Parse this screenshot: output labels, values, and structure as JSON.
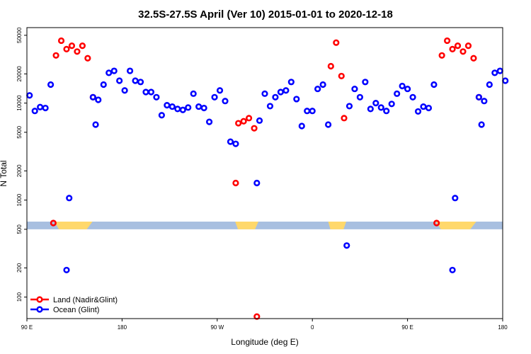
{
  "chart_data": {
    "type": "scatter",
    "title": "32.5S-27.5S April (Ver 10)   2015-01-01 to 2020-12-18",
    "xlabel": "Longitude (deg E)",
    "ylabel": "N Total",
    "x_scale": "linear",
    "y_scale": "log",
    "xlim": [
      90,
      540
    ],
    "ylim": [
      60,
      60000
    ],
    "x_ticks": [
      {
        "value": 90,
        "label": "90 E"
      },
      {
        "value": 180,
        "label": "180"
      },
      {
        "value": 270,
        "label": "90 W"
      },
      {
        "value": 360,
        "label": "0"
      },
      {
        "value": 450,
        "label": "90 E"
      },
      {
        "value": 540,
        "label": "180"
      }
    ],
    "y_ticks": [
      {
        "value": 100,
        "label": "100"
      },
      {
        "value": 200,
        "label": "200"
      },
      {
        "value": 500,
        "label": "500"
      },
      {
        "value": 1000,
        "label": "1000"
      },
      {
        "value": 2000,
        "label": "2000"
      },
      {
        "value": 5000,
        "label": "5000"
      },
      {
        "value": 10000,
        "label": "10000"
      },
      {
        "value": 20000,
        "label": "20000"
      },
      {
        "value": 50000,
        "label": "50000"
      }
    ],
    "map_strip": {
      "y_range": [
        500,
        600
      ],
      "ocean_color": "#a8bfe0",
      "land_color": "#ffd86b",
      "land_segments": [
        [
          116,
          152
        ],
        [
          287,
          309
        ],
        [
          375,
          392
        ],
        [
          477,
          515
        ]
      ]
    },
    "series": [
      {
        "name": "Land (Nadir&Glint)",
        "color": "#ff0000",
        "points": [
          [
            115,
            580
          ],
          [
            117.5,
            31000
          ],
          [
            122.5,
            44000
          ],
          [
            127.5,
            36000
          ],
          [
            132.5,
            39000
          ],
          [
            137.5,
            34000
          ],
          [
            142.5,
            39000
          ],
          [
            147.5,
            29000
          ],
          [
            152.5,
            11500
          ],
          [
            287.5,
            1500
          ],
          [
            290,
            6200
          ],
          [
            295,
            6500
          ],
          [
            300,
            7000
          ],
          [
            305,
            5500
          ],
          [
            307.5,
            63
          ],
          [
            377.5,
            24000
          ],
          [
            382.5,
            42000
          ],
          [
            387.5,
            19000
          ],
          [
            390,
            7000
          ],
          [
            477.5,
            580
          ],
          [
            482.5,
            31000
          ],
          [
            487.5,
            44000
          ],
          [
            492.5,
            36000
          ],
          [
            497.5,
            39000
          ],
          [
            502.5,
            34000
          ],
          [
            507.5,
            39000
          ],
          [
            512.5,
            29000
          ],
          [
            517.5,
            11500
          ]
        ]
      },
      {
        "name": "Ocean (Glint)",
        "color": "#0000ff",
        "points": [
          [
            92.5,
            12000
          ],
          [
            97.5,
            8300
          ],
          [
            102.5,
            9100
          ],
          [
            107.5,
            8900
          ],
          [
            112.5,
            15500
          ],
          [
            127.5,
            190
          ],
          [
            130,
            1050
          ],
          [
            152.5,
            11500
          ],
          [
            155,
            6000
          ],
          [
            157.5,
            10800
          ],
          [
            162.5,
            15500
          ],
          [
            167.5,
            20500
          ],
          [
            172.5,
            21500
          ],
          [
            177.5,
            17000
          ],
          [
            182.5,
            13500
          ],
          [
            187.5,
            21500
          ],
          [
            192.5,
            17000
          ],
          [
            197.5,
            16500
          ],
          [
            202.5,
            13000
          ],
          [
            207.5,
            13000
          ],
          [
            212.5,
            11500
          ],
          [
            217.5,
            7500
          ],
          [
            222.5,
            9500
          ],
          [
            227.5,
            9200
          ],
          [
            232.5,
            8700
          ],
          [
            237.5,
            8500
          ],
          [
            242.5,
            9000
          ],
          [
            247.5,
            12500
          ],
          [
            252.5,
            9200
          ],
          [
            257.5,
            8900
          ],
          [
            262.5,
            6400
          ],
          [
            267.5,
            11500
          ],
          [
            272.5,
            13500
          ],
          [
            277.5,
            10500
          ],
          [
            282.5,
            4000
          ],
          [
            287.5,
            3800
          ],
          [
            307.5,
            1500
          ],
          [
            310,
            6600
          ],
          [
            315,
            12500
          ],
          [
            320,
            9300
          ],
          [
            325,
            11500
          ],
          [
            330,
            13000
          ],
          [
            335,
            13500
          ],
          [
            340,
            16500
          ],
          [
            345,
            11000
          ],
          [
            350,
            5800
          ],
          [
            355,
            8300
          ],
          [
            360,
            8300
          ],
          [
            365,
            14000
          ],
          [
            370,
            15500
          ],
          [
            375,
            6000
          ],
          [
            392.5,
            340
          ],
          [
            395,
            9300
          ],
          [
            400,
            14000
          ],
          [
            405,
            11500
          ],
          [
            410,
            16500
          ],
          [
            415,
            8700
          ],
          [
            420,
            10000
          ],
          [
            425,
            9000
          ],
          [
            430,
            8300
          ],
          [
            435,
            9800
          ],
          [
            440,
            12500
          ],
          [
            445,
            15000
          ],
          [
            450,
            14000
          ],
          [
            455,
            11500
          ],
          [
            460,
            8200
          ],
          [
            465,
            9200
          ],
          [
            470,
            8900
          ],
          [
            475,
            15500
          ],
          [
            492.5,
            190
          ],
          [
            495,
            1050
          ],
          [
            517.5,
            11500
          ],
          [
            520,
            6000
          ],
          [
            522.5,
            10500
          ],
          [
            527.5,
            15500
          ],
          [
            532.5,
            20500
          ],
          [
            537.5,
            21500
          ],
          [
            542.5,
            17000
          ]
        ]
      }
    ],
    "legend": {
      "position": "bottom-left"
    }
  }
}
